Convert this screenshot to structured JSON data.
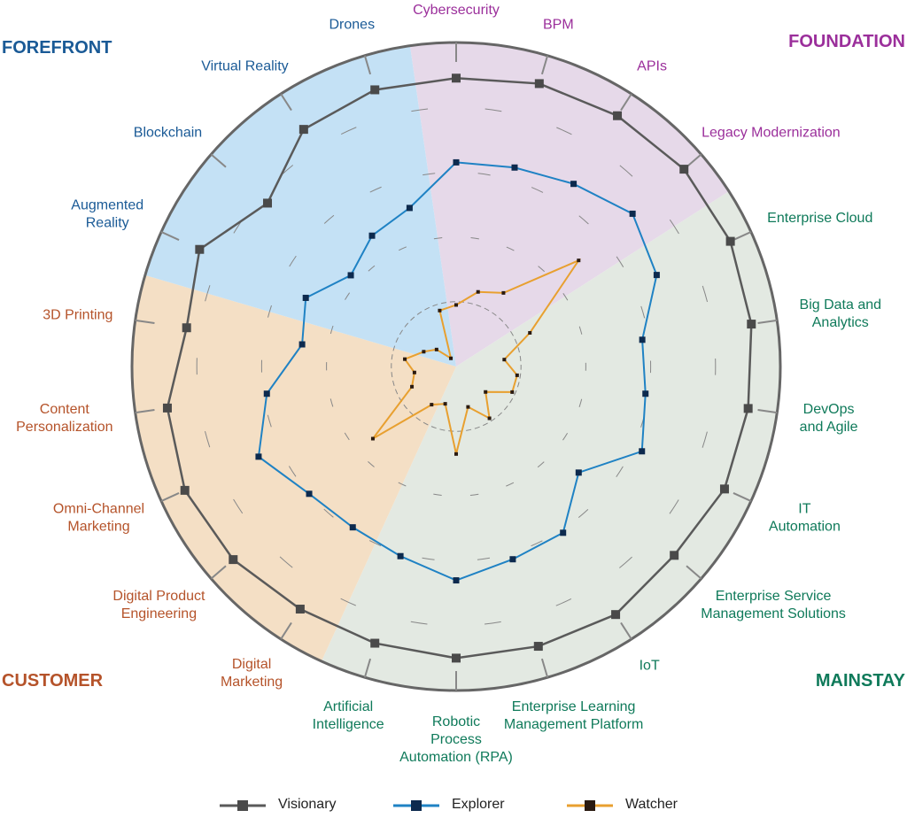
{
  "chart_data": {
    "type": "radar",
    "categories": [
      "Cybersecurity",
      "BPM",
      "APIs",
      "Legacy Modernization",
      "Enterprise Cloud",
      "Big Data and\nAnalytics",
      "DevOps\nand Agile",
      "IT\nAutomation",
      "Enterprise Service\nManagement Solutions",
      "IoT",
      "Enterprise Learning\nManagement Platform",
      "Robotic\nProcess\nAutomation (RPA)",
      "Artificial\nIntelligence",
      "Digital\nMarketing",
      "Digital Product\nEngineering",
      "Omni-Channel\nMarketing",
      "Content\nPersonalization",
      "3D Printing",
      "Augmented\nReality",
      "Blockchain",
      "Virtual Reality",
      "Drones"
    ],
    "groups": [
      {
        "name": "FOUNDATION",
        "color": "#9b2f9b",
        "fill": "#e6d9e9",
        "first": 0,
        "last": 3
      },
      {
        "name": "MAINSTAY",
        "color": "#0f7a5a",
        "fill": "#e3e9e2",
        "first": 4,
        "last": 12
      },
      {
        "name": "CUSTOMER",
        "color": "#b5532a",
        "fill": "#f4dfc5",
        "first": 13,
        "last": 17
      },
      {
        "name": "FOREFRONT",
        "color": "#1a5a96",
        "fill": "#c4e1f5",
        "first": 18,
        "last": 21
      }
    ],
    "rlim": [
      0,
      100
    ],
    "rticks": [
      20,
      40,
      60,
      80
    ],
    "series": [
      {
        "name": "Visionary",
        "color": "#5a5a5a",
        "marker_color": "#4a4a4a",
        "values": [
          89,
          91,
          92,
          93,
          93,
          92,
          91,
          91,
          89,
          91,
          90,
          90,
          89,
          89,
          91,
          92,
          90,
          84,
          87,
          77,
          87,
          89
        ]
      },
      {
        "name": "Explorer",
        "color": "#1f82c4",
        "marker_color": "#0d2a4e",
        "values": [
          63,
          64,
          67,
          72,
          68,
          58,
          59,
          63,
          50,
          61,
          62,
          66,
          61,
          59,
          60,
          67,
          59,
          48,
          51,
          43,
          48,
          51
        ]
      },
      {
        "name": "Watcher",
        "color": "#e8a030",
        "marker_color": "#2a1a10",
        "values": [
          19,
          24,
          27,
          50,
          25,
          15,
          19,
          19,
          12,
          19,
          13,
          27,
          12,
          14,
          34,
          15,
          13,
          16,
          11,
          8,
          3,
          18
        ]
      }
    ]
  }
}
